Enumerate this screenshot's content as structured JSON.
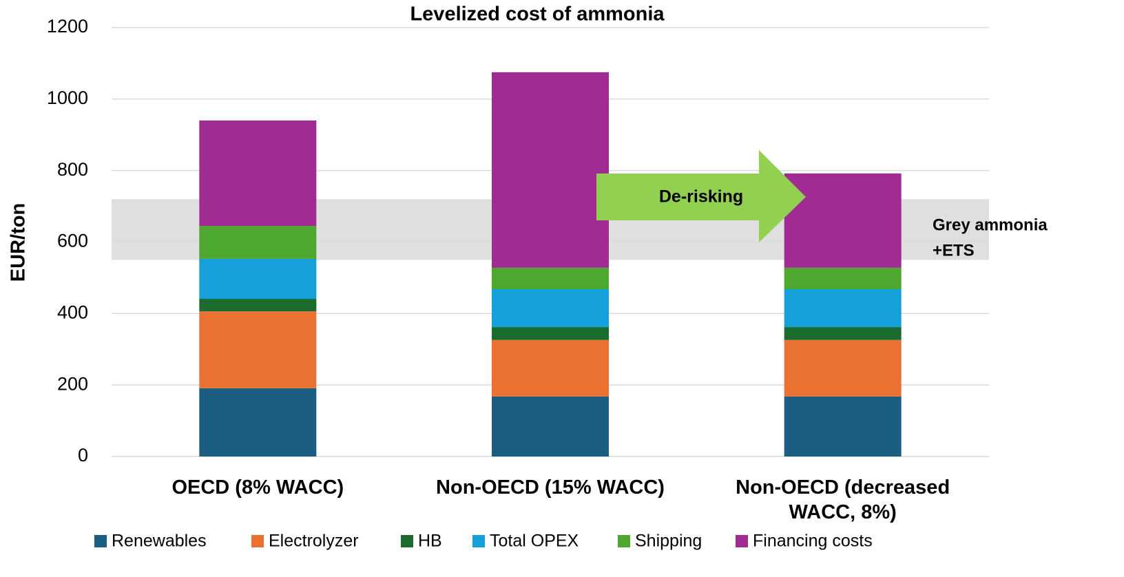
{
  "chart_data": {
    "type": "stacked_bar",
    "title": "Levelized cost of ammonia",
    "y_label": "EUR/ton",
    "categories": [
      "OECD (8% WACC)",
      "Non-OECD (15% WACC)",
      "Non-OECD (decreased WACC, 8%)"
    ],
    "series": [
      {
        "name": "Renewables",
        "color": "#1b5e82",
        "values": [
          191,
          168,
          168
        ]
      },
      {
        "name": "Electrolyzer",
        "color": "#e97132",
        "values": [
          215,
          158,
          158
        ]
      },
      {
        "name": "HB",
        "color": "#1b6b2e",
        "values": [
          35,
          36,
          36
        ]
      },
      {
        "name": "Total OPEX",
        "color": "#15a0d9",
        "values": [
          112,
          106,
          106
        ]
      },
      {
        "name": "Shipping",
        "color": "#4ea72e",
        "values": [
          92,
          60,
          60
        ]
      },
      {
        "name": "Financing costs",
        "color": "#a02b93",
        "values": [
          295,
          547,
          264
        ]
      }
    ],
    "ylim": [
      0,
      1200
    ],
    "yticks": [
      0,
      200,
      400,
      600,
      800,
      1000,
      1200
    ],
    "grid": true,
    "legend": "bottom",
    "band": {
      "range": [
        550,
        720
      ],
      "color": "#d9d9d9",
      "label": [
        "Grey ammonia",
        "+ETS"
      ]
    },
    "arrow_label": "De-risking",
    "arrow_color": "#92d050"
  }
}
